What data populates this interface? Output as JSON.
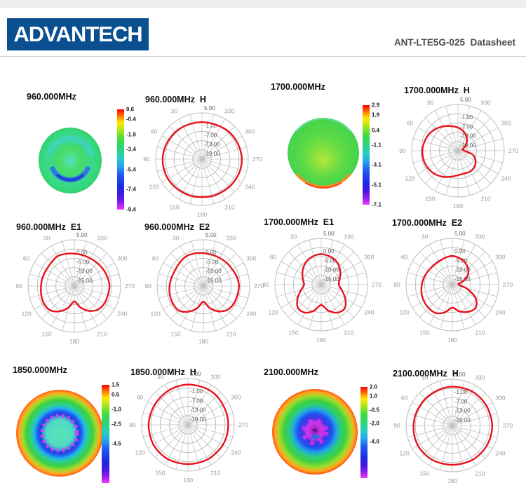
{
  "header": {
    "logo_text": "ADVANTECH",
    "doc_title": "ANT-LTE5G-025  Datasheet"
  },
  "colors": {
    "logo_blue": "#0a5091",
    "curve_red": "#e8111b",
    "grid_gray": "#bdbdbd",
    "angle_label_gray": "#9a9a9a",
    "ring_label_gray": "#5f5f5f",
    "colorbar_gradient": [
      [
        0,
        "#ff0000"
      ],
      [
        0.07,
        "#ff7a00"
      ],
      [
        0.13,
        "#ffe800"
      ],
      [
        0.2,
        "#b4e818"
      ],
      [
        0.3,
        "#3edc3e"
      ],
      [
        0.4,
        "#2bd47e"
      ],
      [
        0.48,
        "#26cfc0"
      ],
      [
        0.56,
        "#24aaec"
      ],
      [
        0.66,
        "#2356f2"
      ],
      [
        0.78,
        "#1b2ae4"
      ],
      [
        0.86,
        "#4418e0"
      ],
      [
        0.93,
        "#8c1cf0"
      ],
      [
        1,
        "#f03cf8"
      ]
    ]
  },
  "chart_data": [
    {
      "type": "surface3d",
      "title": "960.000MHz",
      "frequency_mhz": 960.0,
      "colorbar_labels": [
        "0.6",
        "-0.4",
        "-1.9",
        "-3.4",
        "-5.4",
        "-7.4",
        "-9.4"
      ],
      "colorbar_values_db": [
        0.6,
        -0.4,
        -1.9,
        -3.4,
        -5.4,
        -7.4,
        -9.4
      ],
      "surface": {
        "focal": [
          0.5,
          0.5
        ],
        "gradient": [
          [
            0,
            "#58e4c4"
          ],
          [
            0.18,
            "#52df86"
          ],
          [
            0.38,
            "#46db66"
          ],
          [
            0.55,
            "#3ed87e"
          ],
          [
            0.75,
            "#38d98c"
          ],
          [
            0.92,
            "#35d678"
          ],
          [
            1,
            "#2fcf6a"
          ]
        ],
        "rings": [
          {
            "r": 0.68,
            "from": -70,
            "to": 70,
            "w": 9,
            "color": "#3fd2d8",
            "opacity": 0.55
          },
          {
            "r": 0.6,
            "from": 115,
            "to": 245,
            "w": 7,
            "color": "#2f6fe8",
            "opacity": 0.9
          },
          {
            "r": 0.6,
            "from": 140,
            "to": 220,
            "w": 4,
            "color": "#1b3fd8",
            "opacity": 0.9
          },
          {
            "r": 0.04,
            "from": 0,
            "to": 359.9,
            "w": 6,
            "color": "#49e0c8",
            "opacity": 0.8
          }
        ]
      }
    },
    {
      "type": "polar",
      "title": "960.000MHz  H",
      "plane": "H",
      "frequency_mhz": 960.0,
      "ring_labels": [
        "5.00",
        "-1.00",
        "-7.00",
        "-13.00",
        "-19.00"
      ],
      "ring_values_db": [
        5,
        -1,
        -7,
        -13,
        -19
      ],
      "angle_labels_deg": [
        30,
        60,
        90,
        120,
        150,
        180,
        210,
        240,
        270,
        300,
        330
      ],
      "series": {
        "name": "gain_pattern",
        "unit": "dB",
        "color": "#e8111b",
        "angles_deg": [
          0,
          15,
          30,
          45,
          60,
          75,
          90,
          105,
          120,
          135,
          150,
          165,
          180,
          195,
          210,
          225,
          240,
          255,
          270,
          285,
          300,
          315,
          330,
          345
        ],
        "r_norm": [
          0.8,
          0.8,
          0.81,
          0.82,
          0.83,
          0.84,
          0.85,
          0.85,
          0.85,
          0.84,
          0.83,
          0.83,
          0.82,
          0.83,
          0.83,
          0.84,
          0.85,
          0.86,
          0.86,
          0.85,
          0.84,
          0.83,
          0.81,
          0.8
        ]
      }
    },
    {
      "type": "surface3d",
      "title": "1700.000MHz",
      "frequency_mhz": 1700.0,
      "colorbar_labels": [
        "2.9",
        "1.9",
        "0.4",
        "-1.1",
        "-3.1",
        "-5.1",
        "-7.1"
      ],
      "colorbar_values_db": [
        2.9,
        1.9,
        0.4,
        -1.1,
        -3.1,
        -5.1,
        -7.1
      ],
      "surface": {
        "focal": [
          0.5,
          0.62
        ],
        "gradient": [
          [
            0,
            "#b2e838"
          ],
          [
            0.3,
            "#84e040"
          ],
          [
            0.6,
            "#5bda46"
          ],
          [
            0.85,
            "#4cd64a"
          ],
          [
            1,
            "#45d14e"
          ]
        ],
        "rings": [
          {
            "r": 0.97,
            "from": -50,
            "to": 50,
            "w": 2.5,
            "color": "#7fe8d8",
            "opacity": 0.5
          },
          {
            "r": 0.96,
            "from": 130,
            "to": 230,
            "w": 3.5,
            "color": "#ff8a1c",
            "opacity": 0.95
          },
          {
            "r": 0.99,
            "from": 150,
            "to": 210,
            "w": 2,
            "color": "#ff3a10",
            "opacity": 0.95
          }
        ]
      }
    },
    {
      "type": "polar",
      "title": "1700.000MHz  H",
      "plane": "H",
      "frequency_mhz": 1700.0,
      "ring_labels": [
        "5.00",
        "-1.00",
        "-7.00",
        "-13.00",
        "-19.00"
      ],
      "ring_values_db": [
        5,
        -1,
        -7,
        -13,
        -19
      ],
      "angle_labels_deg": [
        30,
        60,
        90,
        120,
        150,
        180,
        210,
        240,
        270,
        300,
        330
      ],
      "series": {
        "name": "gain_pattern",
        "unit": "dB",
        "color": "#e8111b",
        "angles_deg": [
          0,
          15,
          30,
          45,
          60,
          75,
          90,
          105,
          120,
          135,
          150,
          165,
          180,
          195,
          210,
          225,
          240,
          255,
          270,
          285,
          300,
          315,
          330,
          345
        ],
        "r_norm": [
          0.5,
          0.55,
          0.61,
          0.67,
          0.72,
          0.75,
          0.77,
          0.77,
          0.75,
          0.71,
          0.65,
          0.58,
          0.53,
          0.51,
          0.52,
          0.5,
          0.44,
          0.33,
          0.14,
          0.1,
          0.17,
          0.27,
          0.36,
          0.44
        ]
      }
    },
    {
      "type": "polar",
      "title": "960.000MHz  E1",
      "plane": "E1",
      "frequency_mhz": 960.0,
      "ring_labels": [
        "5.00",
        "0.00",
        "-5.00",
        "-10.00",
        "-15.00"
      ],
      "ring_values_db": [
        5,
        0,
        -5,
        -10,
        -15
      ],
      "angle_labels_deg": [
        30,
        60,
        90,
        120,
        150,
        180,
        210,
        240,
        270,
        300,
        330
      ],
      "series": {
        "name": "gain_pattern",
        "unit": "dB",
        "color": "#e8111b",
        "angles_deg": [
          0,
          15,
          30,
          45,
          60,
          75,
          90,
          105,
          120,
          135,
          150,
          165,
          180,
          195,
          210,
          225,
          240,
          255,
          270,
          285,
          300,
          315,
          330,
          345
        ],
        "r_norm": [
          0.7,
          0.72,
          0.74,
          0.71,
          0.7,
          0.71,
          0.72,
          0.74,
          0.76,
          0.74,
          0.63,
          0.48,
          0.33,
          0.47,
          0.62,
          0.72,
          0.75,
          0.75,
          0.76,
          0.74,
          0.72,
          0.7,
          0.69,
          0.69
        ]
      }
    },
    {
      "type": "polar",
      "title": "960.000MHz  E2",
      "plane": "E2",
      "frequency_mhz": 960.0,
      "ring_labels": [
        "5.00",
        "0.00",
        "-5.00",
        "-10.00",
        "-15.00"
      ],
      "ring_values_db": [
        5,
        0,
        -5,
        -10,
        -15
      ],
      "angle_labels_deg": [
        30,
        60,
        90,
        120,
        150,
        180,
        210,
        240,
        270,
        300,
        330
      ],
      "series": {
        "name": "gain_pattern",
        "unit": "dB",
        "color": "#e8111b",
        "angles_deg": [
          0,
          15,
          30,
          45,
          60,
          75,
          90,
          105,
          120,
          135,
          150,
          165,
          180,
          195,
          210,
          225,
          240,
          255,
          270,
          285,
          300,
          315,
          330,
          345
        ],
        "r_norm": [
          0.71,
          0.73,
          0.74,
          0.72,
          0.7,
          0.71,
          0.73,
          0.75,
          0.76,
          0.75,
          0.64,
          0.49,
          0.34,
          0.48,
          0.63,
          0.73,
          0.76,
          0.76,
          0.77,
          0.75,
          0.72,
          0.71,
          0.7,
          0.7
        ]
      }
    },
    {
      "type": "polar",
      "title": "1700.000MHz  E1",
      "plane": "E1",
      "frequency_mhz": 1700.0,
      "ring_labels": [
        "5.00",
        "0.00",
        "-5.00",
        "-10.00",
        "-15.00"
      ],
      "ring_values_db": [
        5,
        0,
        -5,
        -10,
        -15
      ],
      "angle_labels_deg": [
        30,
        60,
        90,
        120,
        150,
        180,
        210,
        240,
        270,
        300,
        330
      ],
      "series": {
        "name": "gain_pattern",
        "unit": "dB",
        "color": "#e8111b",
        "angles_deg": [
          0,
          15,
          30,
          45,
          60,
          75,
          90,
          105,
          120,
          135,
          150,
          165,
          180,
          195,
          210,
          225,
          240,
          255,
          270,
          285,
          300,
          315,
          330,
          345
        ],
        "r_norm": [
          0.66,
          0.64,
          0.6,
          0.54,
          0.47,
          0.41,
          0.37,
          0.45,
          0.59,
          0.71,
          0.7,
          0.58,
          0.44,
          0.58,
          0.7,
          0.72,
          0.6,
          0.46,
          0.38,
          0.41,
          0.48,
          0.55,
          0.61,
          0.64
        ]
      }
    },
    {
      "type": "polar",
      "title": "1700.000MHz  E2",
      "plane": "E2",
      "frequency_mhz": 1700.0,
      "ring_labels": [
        "5.00",
        "0.00",
        "-5.00",
        "-10.00",
        "-15.00"
      ],
      "ring_values_db": [
        5,
        0,
        -5,
        -10,
        -15
      ],
      "angle_labels_deg": [
        30,
        60,
        90,
        120,
        150,
        180,
        210,
        240,
        270,
        300,
        330
      ],
      "series": {
        "name": "gain_pattern",
        "unit": "dB",
        "color": "#e8111b",
        "angles_deg": [
          0,
          15,
          30,
          45,
          60,
          75,
          90,
          105,
          120,
          135,
          150,
          165,
          180,
          195,
          210,
          225,
          240,
          255,
          270,
          285,
          300,
          315,
          330,
          345
        ],
        "r_norm": [
          0.62,
          0.6,
          0.58,
          0.58,
          0.6,
          0.63,
          0.66,
          0.69,
          0.71,
          0.72,
          0.71,
          0.62,
          0.5,
          0.6,
          0.68,
          0.71,
          0.58,
          0.32,
          0.13,
          0.22,
          0.38,
          0.48,
          0.55,
          0.59
        ]
      }
    },
    {
      "type": "surface3d",
      "title": "1850.000MHz",
      "frequency_mhz": 1850.0,
      "colorbar_labels": [
        "1.5",
        "0.5",
        "-1.0",
        "-2.5",
        "-4.5"
      ],
      "colorbar_values_db": [
        1.5,
        0.5,
        -1.0,
        -2.5,
        -4.5
      ],
      "surface": {
        "focal": [
          0.5,
          0.5
        ],
        "gradient": [
          [
            0,
            "#5ce2b6"
          ],
          [
            0.3,
            "#50dcc2"
          ],
          [
            0.37,
            "#38b8d8"
          ],
          [
            0.44,
            "#2438e0"
          ],
          [
            0.52,
            "#1e68f2"
          ],
          [
            0.58,
            "#22b4ee"
          ],
          [
            0.66,
            "#2dd089"
          ],
          [
            0.76,
            "#3bcf44"
          ],
          [
            0.85,
            "#9cdc2c"
          ],
          [
            0.93,
            "#ffa822"
          ],
          [
            1,
            "#ff5c14"
          ]
        ],
        "rings": [
          {
            "r": 0.4,
            "from": 0,
            "to": 359.9,
            "w": 6,
            "color": "#e03ef0",
            "dash": "3 5",
            "opacity": 0.9
          }
        ]
      }
    },
    {
      "type": "polar",
      "title": "1850.000MHz  H",
      "plane": "H",
      "frequency_mhz": 1850.0,
      "ring_labels": [
        "5.00",
        "-1.00",
        "-7.00",
        "-13.00",
        "-19.00"
      ],
      "ring_values_db": [
        5,
        -1,
        -7,
        -13,
        -19
      ],
      "angle_labels_deg": [
        30,
        60,
        90,
        120,
        150,
        180,
        210,
        240,
        270,
        300,
        330
      ],
      "series": {
        "name": "gain_pattern",
        "unit": "dB",
        "color": "#e8111b",
        "angles_deg": [
          0,
          15,
          30,
          45,
          60,
          75,
          90,
          105,
          120,
          135,
          150,
          165,
          180,
          195,
          210,
          225,
          240,
          255,
          270,
          285,
          300,
          315,
          330,
          345
        ],
        "r_norm": [
          0.87,
          0.86,
          0.85,
          0.84,
          0.84,
          0.84,
          0.85,
          0.85,
          0.86,
          0.86,
          0.86,
          0.85,
          0.85,
          0.85,
          0.86,
          0.86,
          0.87,
          0.87,
          0.87,
          0.87,
          0.87,
          0.88,
          0.88,
          0.87
        ]
      }
    },
    {
      "type": "surface3d",
      "title": "2100.000MHz",
      "frequency_mhz": 2100.0,
      "colorbar_labels": [
        "2.0",
        "1.0",
        "-0.5",
        "-2.0",
        "-4.0"
      ],
      "colorbar_values_db": [
        2.0,
        1.0,
        -0.5,
        -2.0,
        -4.0
      ],
      "surface": {
        "focal": [
          0.5,
          0.48
        ],
        "gradient": [
          [
            0,
            "#4a1060"
          ],
          [
            0.07,
            "#a424c4"
          ],
          [
            0.18,
            "#d03cec"
          ],
          [
            0.28,
            "#4434e4"
          ],
          [
            0.4,
            "#2052ee"
          ],
          [
            0.5,
            "#21a2ec"
          ],
          [
            0.6,
            "#2bcc80"
          ],
          [
            0.72,
            "#3cd142"
          ],
          [
            0.84,
            "#a0dc2a"
          ],
          [
            0.93,
            "#ffa61e"
          ],
          [
            1,
            "#ff5212"
          ]
        ],
        "rings": [
          {
            "r": 0.2,
            "from": 0,
            "to": 359.9,
            "w": 14,
            "color": "#cc2fe8",
            "dash": "4 6",
            "opacity": 0.95
          },
          {
            "r": 0.12,
            "from": 150,
            "to": 200,
            "w": 6,
            "color": "#2a6fe0",
            "opacity": 0.9
          }
        ]
      }
    },
    {
      "type": "polar",
      "title": "2100.000MHz  H",
      "plane": "H",
      "frequency_mhz": 2100.0,
      "ring_labels": [
        "5.00",
        "-1.00",
        "-7.00",
        "-13.00",
        "-19.00"
      ],
      "ring_values_db": [
        5,
        -1,
        -7,
        -13,
        -19
      ],
      "angle_labels_deg": [
        30,
        60,
        90,
        120,
        150,
        180,
        210,
        240,
        270,
        300,
        330
      ],
      "series": {
        "name": "gain_pattern",
        "unit": "dB",
        "color": "#e8111b",
        "angles_deg": [
          0,
          15,
          30,
          45,
          60,
          75,
          90,
          105,
          120,
          135,
          150,
          165,
          180,
          195,
          210,
          225,
          240,
          255,
          270,
          285,
          300,
          315,
          330,
          345
        ],
        "r_norm": [
          0.84,
          0.83,
          0.82,
          0.82,
          0.82,
          0.83,
          0.84,
          0.85,
          0.86,
          0.86,
          0.86,
          0.85,
          0.85,
          0.85,
          0.86,
          0.86,
          0.86,
          0.86,
          0.86,
          0.85,
          0.85,
          0.85,
          0.85,
          0.84
        ]
      }
    }
  ]
}
